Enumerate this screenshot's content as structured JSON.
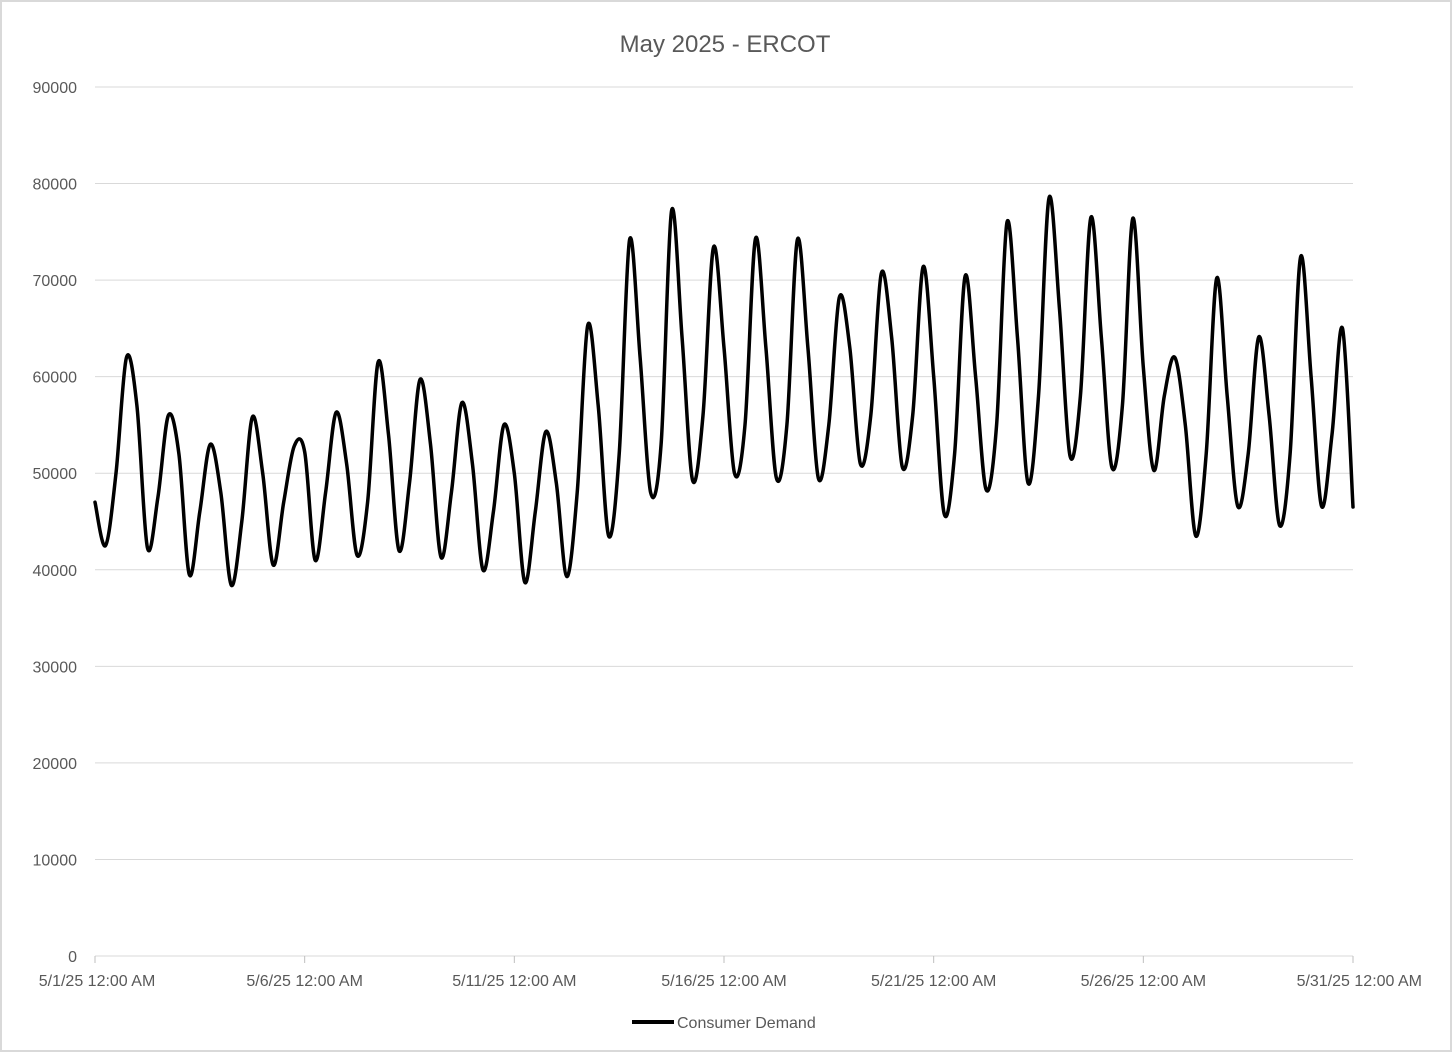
{
  "chart_data": {
    "type": "line",
    "title": "May 2025 - ERCOT",
    "xlabel": "",
    "ylabel": "",
    "ylim": [
      0,
      90000
    ],
    "xlim": [
      "2025-05-01T00:00",
      "2025-05-31T00:00"
    ],
    "y_ticks": [
      0,
      10000,
      20000,
      30000,
      40000,
      50000,
      60000,
      70000,
      80000,
      90000
    ],
    "y_tick_labels": [
      "0",
      "10000",
      "20000",
      "30000",
      "40000",
      "50000",
      "60000",
      "70000",
      "80000",
      "90000"
    ],
    "x_ticks": [
      "2025-05-01T00:00",
      "2025-05-06T00:00",
      "2025-05-11T00:00",
      "2025-05-16T00:00",
      "2025-05-21T00:00",
      "2025-05-26T00:00",
      "2025-05-31T00:00"
    ],
    "x_tick_labels": [
      "5/1/25 12:00 AM",
      "5/6/25 12:00 AM",
      "5/11/25 12:00 AM",
      "5/16/25 12:00 AM",
      "5/21/25 12:00 AM",
      "5/26/25 12:00 AM",
      "5/31/25 12:00 AM"
    ],
    "grid": true,
    "legend": "bottom",
    "series": [
      {
        "name": "Consumer Demand",
        "color": "#000000",
        "points": [
          [
            "2025-05-01T00:00",
            47000
          ],
          [
            "2025-05-01T06:00",
            42500
          ],
          [
            "2025-05-01T12:00",
            50000
          ],
          [
            "2025-05-01T18:00",
            62000
          ],
          [
            "2025-05-02T00:00",
            57000
          ],
          [
            "2025-05-02T06:00",
            42300
          ],
          [
            "2025-05-02T12:00",
            47500
          ],
          [
            "2025-05-02T18:00",
            56000
          ],
          [
            "2025-05-03T00:00",
            52000
          ],
          [
            "2025-05-03T06:00",
            39500
          ],
          [
            "2025-05-03T12:00",
            46000
          ],
          [
            "2025-05-03T18:00",
            53000
          ],
          [
            "2025-05-04T00:00",
            48000
          ],
          [
            "2025-05-04T06:00",
            38400
          ],
          [
            "2025-05-04T12:00",
            45000
          ],
          [
            "2025-05-04T18:00",
            55800
          ],
          [
            "2025-05-05T00:00",
            50000
          ],
          [
            "2025-05-05T06:00",
            40500
          ],
          [
            "2025-05-05T12:00",
            47000
          ],
          [
            "2025-05-05T18:00",
            52800
          ],
          [
            "2025-05-06T00:00",
            52200
          ],
          [
            "2025-05-06T06:00",
            41000
          ],
          [
            "2025-05-06T12:00",
            48000
          ],
          [
            "2025-05-06T18:00",
            56300
          ],
          [
            "2025-05-07T00:00",
            51000
          ],
          [
            "2025-05-07T06:00",
            41500
          ],
          [
            "2025-05-07T12:00",
            47000
          ],
          [
            "2025-05-07T18:00",
            61500
          ],
          [
            "2025-05-08T00:00",
            54000
          ],
          [
            "2025-05-08T06:00",
            42000
          ],
          [
            "2025-05-08T12:00",
            49000
          ],
          [
            "2025-05-08T18:00",
            59700
          ],
          [
            "2025-05-09T00:00",
            53000
          ],
          [
            "2025-05-09T06:00",
            41300
          ],
          [
            "2025-05-09T12:00",
            48000
          ],
          [
            "2025-05-09T18:00",
            57300
          ],
          [
            "2025-05-10T00:00",
            51000
          ],
          [
            "2025-05-10T06:00",
            40000
          ],
          [
            "2025-05-10T12:00",
            46000
          ],
          [
            "2025-05-10T18:00",
            55000
          ],
          [
            "2025-05-11T00:00",
            50000
          ],
          [
            "2025-05-11T06:00",
            38700
          ],
          [
            "2025-05-11T12:00",
            46000
          ],
          [
            "2025-05-11T18:00",
            54300
          ],
          [
            "2025-05-12T00:00",
            49000
          ],
          [
            "2025-05-12T06:00",
            39300
          ],
          [
            "2025-05-12T12:00",
            48000
          ],
          [
            "2025-05-12T18:00",
            65300
          ],
          [
            "2025-05-13T00:00",
            57000
          ],
          [
            "2025-05-13T06:00",
            43500
          ],
          [
            "2025-05-13T12:00",
            52000
          ],
          [
            "2025-05-13T18:00",
            74200
          ],
          [
            "2025-05-14T00:00",
            62000
          ],
          [
            "2025-05-14T06:00",
            48000
          ],
          [
            "2025-05-14T12:00",
            53000
          ],
          [
            "2025-05-14T18:00",
            77200
          ],
          [
            "2025-05-15T00:00",
            64000
          ],
          [
            "2025-05-15T06:00",
            49300
          ],
          [
            "2025-05-15T12:00",
            56000
          ],
          [
            "2025-05-15T18:00",
            73400
          ],
          [
            "2025-05-16T00:00",
            63000
          ],
          [
            "2025-05-16T06:00",
            50000
          ],
          [
            "2025-05-16T12:00",
            55000
          ],
          [
            "2025-05-16T18:00",
            74300
          ],
          [
            "2025-05-17T00:00",
            63000
          ],
          [
            "2025-05-17T06:00",
            49500
          ],
          [
            "2025-05-17T12:00",
            55000
          ],
          [
            "2025-05-17T18:00",
            74200
          ],
          [
            "2025-05-18T00:00",
            63000
          ],
          [
            "2025-05-18T06:00",
            49500
          ],
          [
            "2025-05-18T12:00",
            55000
          ],
          [
            "2025-05-18T18:00",
            68200
          ],
          [
            "2025-05-19T00:00",
            63000
          ],
          [
            "2025-05-19T06:00",
            51000
          ],
          [
            "2025-05-19T12:00",
            56000
          ],
          [
            "2025-05-19T18:00",
            70700
          ],
          [
            "2025-05-20T00:00",
            64000
          ],
          [
            "2025-05-20T06:00",
            50700
          ],
          [
            "2025-05-20T12:00",
            56000
          ],
          [
            "2025-05-20T18:00",
            71400
          ],
          [
            "2025-05-21T00:00",
            60000
          ],
          [
            "2025-05-21T06:00",
            45800
          ],
          [
            "2025-05-21T12:00",
            52000
          ],
          [
            "2025-05-21T18:00",
            70400
          ],
          [
            "2025-05-22T00:00",
            60000
          ],
          [
            "2025-05-22T06:00",
            48300
          ],
          [
            "2025-05-22T12:00",
            55000
          ],
          [
            "2025-05-22T18:00",
            76000
          ],
          [
            "2025-05-23T00:00",
            64000
          ],
          [
            "2025-05-23T06:00",
            49000
          ],
          [
            "2025-05-23T12:00",
            58000
          ],
          [
            "2025-05-23T18:00",
            78500
          ],
          [
            "2025-05-24T00:00",
            67000
          ],
          [
            "2025-05-24T06:00",
            51800
          ],
          [
            "2025-05-24T12:00",
            58000
          ],
          [
            "2025-05-24T18:00",
            76500
          ],
          [
            "2025-05-25T00:00",
            64000
          ],
          [
            "2025-05-25T06:00",
            50600
          ],
          [
            "2025-05-25T12:00",
            57000
          ],
          [
            "2025-05-25T18:00",
            76400
          ],
          [
            "2025-05-26T00:00",
            61000
          ],
          [
            "2025-05-26T06:00",
            50300
          ],
          [
            "2025-05-26T12:00",
            58000
          ],
          [
            "2025-05-26T18:00",
            62000
          ],
          [
            "2025-05-27T00:00",
            55000
          ],
          [
            "2025-05-27T06:00",
            43500
          ],
          [
            "2025-05-27T12:00",
            52000
          ],
          [
            "2025-05-27T18:00",
            70200
          ],
          [
            "2025-05-28T00:00",
            58000
          ],
          [
            "2025-05-28T06:00",
            46600
          ],
          [
            "2025-05-28T12:00",
            52000
          ],
          [
            "2025-05-28T18:00",
            64100
          ],
          [
            "2025-05-29T00:00",
            56000
          ],
          [
            "2025-05-29T06:00",
            44600
          ],
          [
            "2025-05-29T12:00",
            52000
          ],
          [
            "2025-05-29T18:00",
            72400
          ],
          [
            "2025-05-30T00:00",
            60000
          ],
          [
            "2025-05-30T06:00",
            46600
          ],
          [
            "2025-05-30T12:00",
            54000
          ],
          [
            "2025-05-30T18:00",
            65000
          ],
          [
            "2025-05-31T00:00",
            46500
          ]
        ]
      }
    ]
  }
}
